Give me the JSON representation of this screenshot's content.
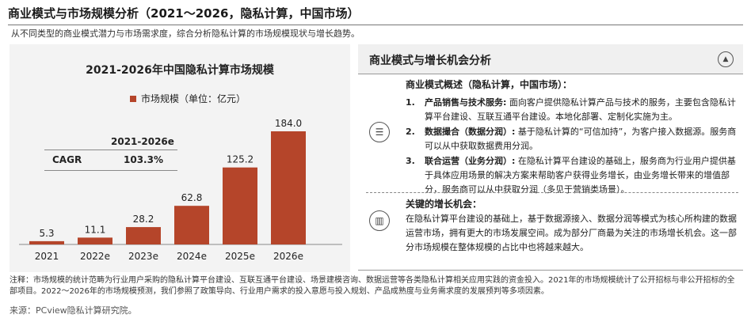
{
  "title": "商业模式与市场规模分析（2021～2026，隐私计算，中国市场）",
  "subtitle": "从不同类型的商业模式潜力与市场需求度，综合分析隐私计算的市场规模现状与增长趋势。",
  "chart_data": {
    "type": "bar",
    "title": "2021-2026年中国隐私计算市场规模",
    "legend": "市场规模（单位：亿元）",
    "categories": [
      "2021",
      "2022e",
      "2023e",
      "2024e",
      "2025e",
      "2026e"
    ],
    "values": [
      5.3,
      11.1,
      28.2,
      62.8,
      125.2,
      184.0
    ],
    "value_labels": [
      "5.3",
      "11.1",
      "28.2",
      "62.8",
      "125.2",
      "184.0"
    ],
    "ylim": [
      0,
      184.0
    ],
    "color": "#b5452a",
    "cagr": {
      "period": "2021-2026e",
      "label": "CAGR",
      "value": "103.3%"
    }
  },
  "right_panel": {
    "title": "商业模式与增长机会分析",
    "model_heading": "商业模式概述（隐私计算，中国市场）：",
    "models": [
      {
        "num": "1.",
        "name": "产品销售与技术服务:",
        "text": " 面向客户提供隐私计算产品与技术的服务，主要包含隐私计算平台建设、互联互通平台建设。本地化部署、定制化实施为主。"
      },
      {
        "num": "2.",
        "name": "数据撮合（数据分润）:",
        "text": " 基于隐私计算的“可信加持”，为客户接入数据源。服务商可以从中获取数据费用分润。"
      },
      {
        "num": "3.",
        "name": "联合运营（业务分润）:",
        "text": " 在隐私计算平台建设的基础上，服务商为行业用户提供基于具体应用场景的解决方案来帮助客户获得业务增长，由业务增长带来的增值部分，服务商可以从中获取分润（多见于营销类场景）。"
      }
    ],
    "growth_heading": "关键的增长机会：",
    "growth_text": "在隐私计算平台建设的基础上，基于数据源接入、数据分润等模式为核心所构建的数据运营市场，拥有更大的市场发展空间。成为部分厂商最为关注的市场增长机会。这一部分市场规模在整体规模的占比中也将越来越大。",
    "icons": {
      "header": "compass-icon",
      "models": "list-icon",
      "growth": "books-icon"
    }
  },
  "notes": "注释：市场规模的统计范畴为行业用户采购的隐私计算平台建设、互联互通平台建设、场景建模咨询、数据运营等各类隐私计算相关应用实践的资金投入。2021年的市场规模统计了公开招标与非公开招标的全部项目。2022～2026年的市场规模预测，我们参照了政策导向、行业用户需求的投入意愿与投入规划、产品成熟度与业务需求度的发展预判等多项因素。",
  "source": "来源：PCview隐私计算研究院。"
}
